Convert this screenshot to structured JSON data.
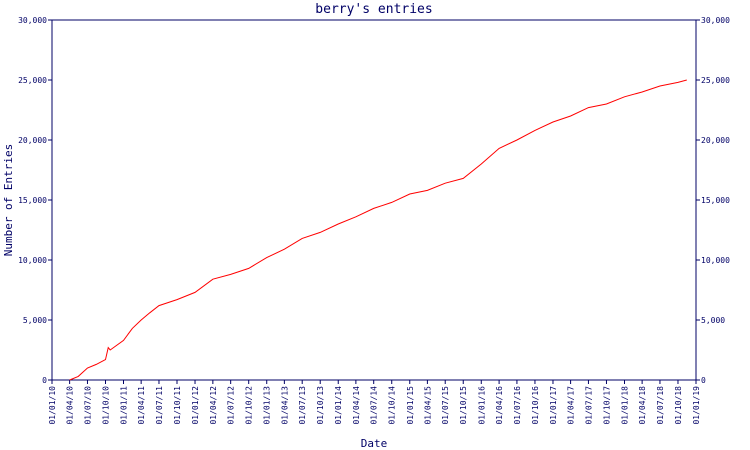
{
  "chart_data": {
    "type": "line",
    "title": "berry's entries",
    "x_label": "Date",
    "y_label": "Number of Entries",
    "x": [
      "01/04/10",
      "15/05/10",
      "01/07/10",
      "15/08/10",
      "01/10/10",
      "15/10/10",
      "25/10/10",
      "01/01/11",
      "15/02/11",
      "01/04/11",
      "15/05/11",
      "01/07/11",
      "01/10/11",
      "01/01/12",
      "01/04/12",
      "01/07/12",
      "01/10/12",
      "01/01/13",
      "01/04/13",
      "01/07/13",
      "01/10/13",
      "01/01/14",
      "01/04/14",
      "01/07/14",
      "01/10/14",
      "01/01/15",
      "01/04/15",
      "01/07/15",
      "01/10/15",
      "01/01/16",
      "01/04/16",
      "01/07/16",
      "01/10/16",
      "01/01/17",
      "01/04/17",
      "01/07/17",
      "01/10/17",
      "01/01/18",
      "01/04/18",
      "01/07/18",
      "01/10/18",
      "15/11/18"
    ],
    "series": [
      {
        "name": "entries",
        "color": "#ff0000",
        "values": [
          0,
          300,
          1000,
          1300,
          1700,
          2700,
          2500,
          3300,
          4300,
          5000,
          5600,
          6200,
          6700,
          7300,
          8400,
          8800,
          9300,
          10200,
          10900,
          11800,
          12300,
          13000,
          13600,
          14300,
          14800,
          15500,
          15800,
          16400,
          16800,
          18000,
          19300,
          20000,
          20800,
          21500,
          22000,
          22700,
          23000,
          23600,
          24000,
          24500,
          24800,
          25000
        ]
      }
    ],
    "xlim": [
      "01/01/10",
      "01/01/19"
    ],
    "xticks": [
      "01/01/10",
      "01/04/10",
      "01/07/10",
      "01/10/10",
      "01/01/11",
      "01/04/11",
      "01/07/11",
      "01/10/11",
      "01/01/12",
      "01/04/12",
      "01/07/12",
      "01/10/12",
      "01/01/13",
      "01/04/13",
      "01/07/13",
      "01/10/13",
      "01/01/14",
      "01/04/14",
      "01/07/14",
      "01/10/14",
      "01/01/15",
      "01/04/15",
      "01/07/15",
      "01/10/15",
      "01/01/16",
      "01/04/16",
      "01/07/16",
      "01/10/16",
      "01/01/17",
      "01/04/17",
      "01/07/17",
      "01/10/17",
      "01/01/18",
      "01/04/18",
      "01/07/18",
      "01/10/18",
      "01/01/19"
    ],
    "ylim": [
      0,
      30000
    ],
    "yticks": [
      0,
      {
        "value": 5000,
        "label": "5,000"
      },
      {
        "value": 10000,
        "label": "10,000"
      },
      {
        "value": 15000,
        "label": "15,000"
      },
      {
        "value": 20000,
        "label": "20,000"
      },
      {
        "value": 25000,
        "label": "25,000"
      },
      {
        "value": 30000,
        "label": "30,000"
      }
    ]
  }
}
